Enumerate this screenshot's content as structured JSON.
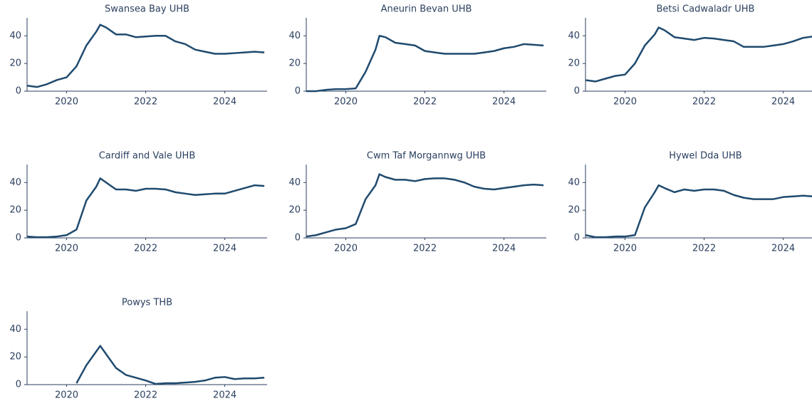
{
  "chart_data": [
    {
      "type": "line",
      "title": "Swansea Bay UHB",
      "color": "#1f4a6e",
      "x": [
        2019.0,
        2019.25,
        2019.5,
        2019.75,
        2020.0,
        2020.25,
        2020.5,
        2020.75,
        2020.85,
        2021.0,
        2021.25,
        2021.5,
        2021.75,
        2022.0,
        2022.25,
        2022.5,
        2022.75,
        2023.0,
        2023.25,
        2023.5,
        2023.75,
        2024.0,
        2024.25,
        2024.5,
        2024.75,
        2025.0
      ],
      "values": [
        4,
        3,
        5,
        8,
        10,
        18,
        33,
        43,
        48,
        46,
        41,
        41,
        39,
        39.5,
        40,
        40,
        36,
        34,
        30,
        28.5,
        27,
        27,
        27.5,
        28,
        28.5,
        28
      ],
      "xlim": [
        2019,
        2025.07
      ],
      "ylim": [
        0,
        53
      ],
      "xticks": [
        2020,
        2022,
        2024
      ],
      "yticks": [
        0,
        20,
        40
      ],
      "grid": false
    },
    {
      "type": "line",
      "title": "Aneurin Bevan UHB",
      "color": "#1f4a6e",
      "x": [
        2019.0,
        2019.25,
        2019.5,
        2019.75,
        2020.0,
        2020.25,
        2020.5,
        2020.75,
        2020.85,
        2021.0,
        2021.25,
        2021.5,
        2021.75,
        2022.0,
        2022.25,
        2022.5,
        2022.75,
        2023.0,
        2023.25,
        2023.5,
        2023.75,
        2024.0,
        2024.25,
        2024.5,
        2024.75,
        2025.0
      ],
      "values": [
        0,
        0,
        1,
        1.5,
        1.5,
        2,
        14,
        30,
        40,
        39,
        35,
        34,
        33,
        29,
        28,
        27,
        27,
        27,
        27,
        28,
        29,
        31,
        32,
        34,
        33.5,
        33
      ],
      "xlim": [
        2019,
        2025.07
      ],
      "ylim": [
        0,
        53
      ],
      "xticks": [
        2020,
        2022,
        2024
      ],
      "yticks": [
        0,
        20,
        40
      ],
      "grid": false
    },
    {
      "type": "line",
      "title": "Betsi Cadwaladr UHB",
      "color": "#1f4a6e",
      "x": [
        2019.0,
        2019.25,
        2019.5,
        2019.75,
        2020.0,
        2020.25,
        2020.5,
        2020.75,
        2020.85,
        2021.0,
        2021.25,
        2021.5,
        2021.75,
        2022.0,
        2022.25,
        2022.5,
        2022.75,
        2023.0,
        2023.25,
        2023.5,
        2023.75,
        2024.0,
        2024.25,
        2024.5,
        2024.75,
        2025.0
      ],
      "values": [
        8,
        7,
        9,
        11,
        12,
        20,
        33,
        41,
        46,
        44,
        39,
        38,
        37,
        38.5,
        38,
        37,
        36,
        32,
        32,
        32,
        33,
        34,
        36,
        38.5,
        39.5,
        40
      ],
      "xlim": [
        2019,
        2025.07
      ],
      "ylim": [
        0,
        53
      ],
      "xticks": [
        2020,
        2022,
        2024
      ],
      "yticks": [
        0,
        20,
        40
      ],
      "grid": false
    },
    {
      "type": "line",
      "title": "Cardiff and Vale UHB",
      "color": "#1f4a6e",
      "x": [
        2019.0,
        2019.25,
        2019.5,
        2019.75,
        2020.0,
        2020.25,
        2020.5,
        2020.75,
        2020.85,
        2021.0,
        2021.25,
        2021.5,
        2021.75,
        2022.0,
        2022.25,
        2022.5,
        2022.75,
        2023.0,
        2023.25,
        2023.5,
        2023.75,
        2024.0,
        2024.25,
        2024.5,
        2024.75,
        2025.0
      ],
      "values": [
        1,
        0.5,
        0.5,
        1,
        2,
        6,
        27,
        37,
        43,
        40,
        35,
        35,
        34,
        35.5,
        35.5,
        35,
        33,
        32,
        31,
        31.5,
        32,
        32,
        34,
        36,
        38,
        37.5
      ],
      "xlim": [
        2019,
        2025.07
      ],
      "ylim": [
        0,
        53
      ],
      "xticks": [
        2020,
        2022,
        2024
      ],
      "yticks": [
        0,
        20,
        40
      ],
      "grid": false
    },
    {
      "type": "line",
      "title": "Cwm Taf Morgannwg UHB",
      "color": "#1f4a6e",
      "x": [
        2019.0,
        2019.25,
        2019.5,
        2019.75,
        2020.0,
        2020.25,
        2020.5,
        2020.75,
        2020.85,
        2021.0,
        2021.25,
        2021.5,
        2021.75,
        2022.0,
        2022.25,
        2022.5,
        2022.75,
        2023.0,
        2023.25,
        2023.5,
        2023.75,
        2024.0,
        2024.25,
        2024.5,
        2024.75,
        2025.0
      ],
      "values": [
        1,
        2,
        4,
        6,
        7,
        10,
        28,
        38,
        46,
        44,
        42,
        42,
        41,
        42.5,
        43,
        43,
        42,
        40,
        37,
        35.5,
        35,
        36,
        37,
        38,
        38.5,
        38
      ],
      "xlim": [
        2019,
        2025.07
      ],
      "ylim": [
        0,
        53
      ],
      "xticks": [
        2020,
        2022,
        2024
      ],
      "yticks": [
        0,
        20,
        40
      ],
      "grid": false
    },
    {
      "type": "line",
      "title": "Hywel Dda UHB",
      "color": "#1f4a6e",
      "x": [
        2019.0,
        2019.25,
        2019.5,
        2019.75,
        2020.0,
        2020.25,
        2020.5,
        2020.75,
        2020.85,
        2021.0,
        2021.25,
        2021.5,
        2021.75,
        2022.0,
        2022.25,
        2022.5,
        2022.75,
        2023.0,
        2023.25,
        2023.5,
        2023.75,
        2024.0,
        2024.25,
        2024.5,
        2024.75,
        2025.0
      ],
      "values": [
        2,
        0.5,
        0.5,
        1,
        1,
        2,
        22,
        33,
        38,
        36,
        33,
        35,
        34,
        35,
        35,
        34,
        31,
        29,
        28,
        28,
        28,
        29.5,
        30,
        30.5,
        30,
        29
      ],
      "xlim": [
        2019,
        2025.07
      ],
      "ylim": [
        0,
        53
      ],
      "xticks": [
        2020,
        2022,
        2024
      ],
      "yticks": [
        0,
        20,
        40
      ],
      "grid": false
    },
    {
      "type": "line",
      "title": "Powys THB",
      "color": "#1f4a6e",
      "x": [
        2019.0,
        2019.25,
        2019.5,
        2019.75,
        2020.0,
        2020.25,
        2020.5,
        2020.75,
        2020.85,
        2021.0,
        2021.25,
        2021.5,
        2021.75,
        2022.0,
        2022.25,
        2022.5,
        2022.75,
        2023.0,
        2023.25,
        2023.5,
        2023.75,
        2024.0,
        2024.25,
        2024.5,
        2024.75,
        2025.0
      ],
      "values": [
        null,
        null,
        null,
        null,
        null,
        1,
        14,
        24,
        28,
        22,
        12,
        7,
        5,
        3,
        0.5,
        1,
        1,
        1.5,
        2,
        3,
        5,
        5.5,
        4,
        4.5,
        4.5,
        5
      ],
      "xlim": [
        2019,
        2025.07
      ],
      "ylim": [
        0,
        53
      ],
      "xticks": [
        2020,
        2022,
        2024
      ],
      "yticks": [
        0,
        20,
        40
      ],
      "grid": false
    }
  ]
}
